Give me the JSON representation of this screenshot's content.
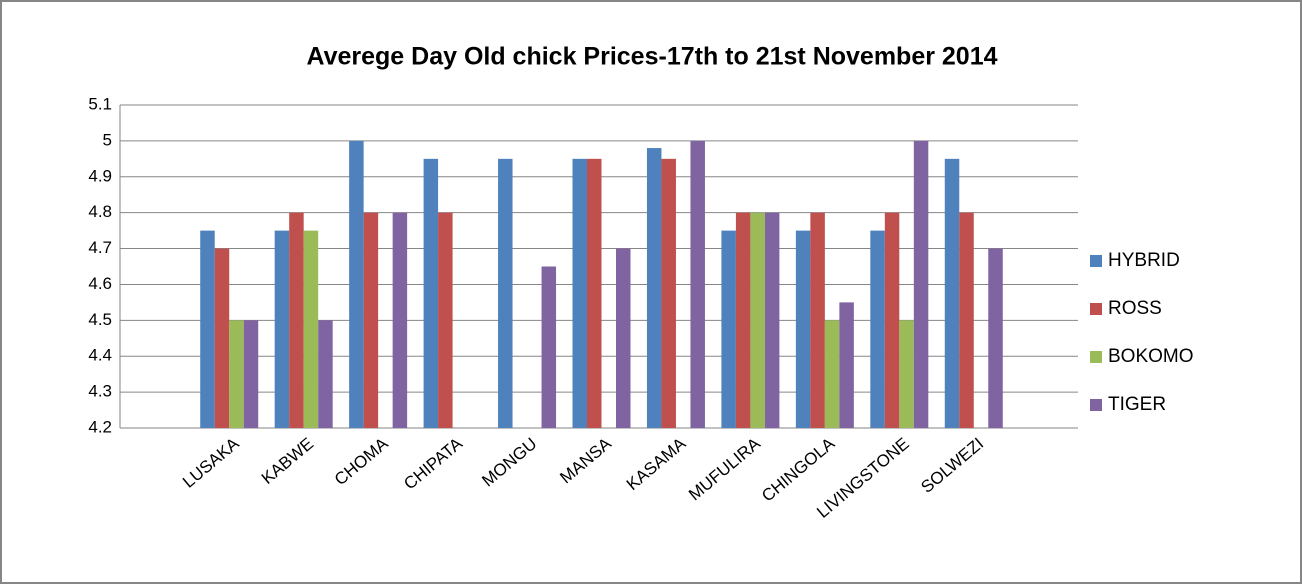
{
  "chart_data": {
    "type": "bar",
    "title": "Averege Day Old chick Prices-17th to 21st November 2014",
    "categories": [
      "LUSAKA",
      "KABWE",
      "CHOMA",
      "CHIPATA",
      "MONGU",
      "MANSA",
      "KASAMA",
      "MUFULIRA",
      "CHINGOLA",
      "LIVINGSTONE",
      "SOLWEZI"
    ],
    "series": [
      {
        "name": "HYBRID",
        "color": "#4f81bd",
        "values": [
          4.75,
          4.75,
          5,
          4.95,
          4.95,
          4.95,
          4.98,
          4.75,
          4.75,
          4.75,
          4.95
        ]
      },
      {
        "name": "ROSS",
        "color": "#c0504d",
        "values": [
          4.7,
          4.8,
          4.8,
          4.8,
          null,
          4.95,
          4.95,
          4.8,
          4.8,
          4.8,
          4.8
        ]
      },
      {
        "name": "BOKOMO",
        "color": "#9bbb59",
        "values": [
          4.5,
          4.75,
          null,
          null,
          null,
          null,
          null,
          4.8,
          4.5,
          4.5,
          null
        ]
      },
      {
        "name": "TIGER",
        "color": "#8064a2",
        "values": [
          4.5,
          4.5,
          4.8,
          null,
          4.65,
          4.7,
          5,
          4.8,
          4.55,
          5,
          4.7
        ]
      }
    ],
    "ylim": [
      4.2,
      5.1
    ],
    "yticks": [
      4.2,
      4.3,
      4.4,
      4.5,
      4.6,
      4.7,
      4.8,
      4.9,
      5,
      5.1
    ],
    "grid": true,
    "legend": "right"
  }
}
